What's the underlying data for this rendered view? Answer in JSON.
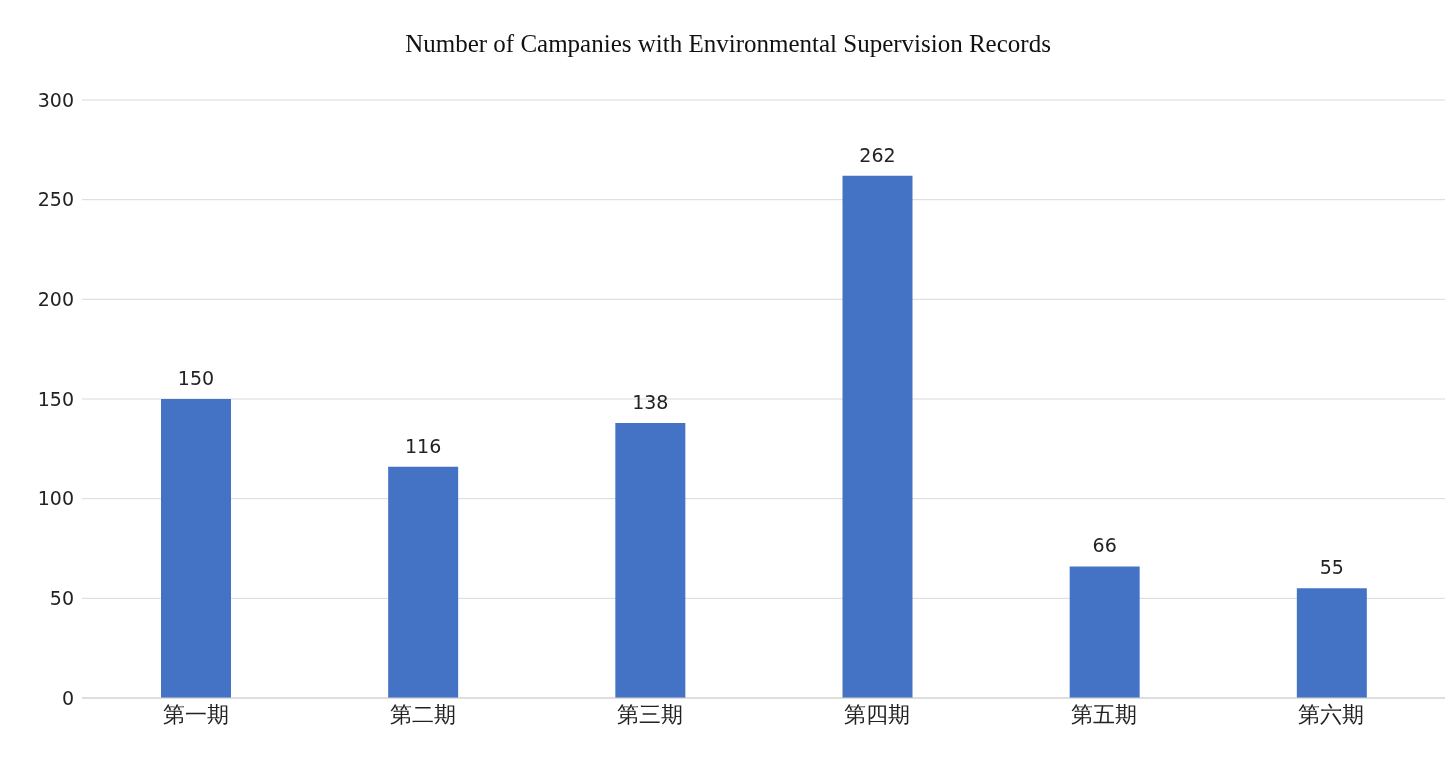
{
  "chart_data": {
    "type": "bar",
    "title": "Number of Campanies with Environmental Supervision Records",
    "categories": [
      "第一期",
      "第二期",
      "第三期",
      "第四期",
      "第五期",
      "第六期"
    ],
    "values": [
      150,
      116,
      138,
      262,
      66,
      55
    ],
    "color": "#4472c4",
    "ylim": [
      0,
      300
    ],
    "yticks": [
      0,
      50,
      100,
      150,
      200,
      250,
      300
    ],
    "grid": "y",
    "data_labels": true
  }
}
